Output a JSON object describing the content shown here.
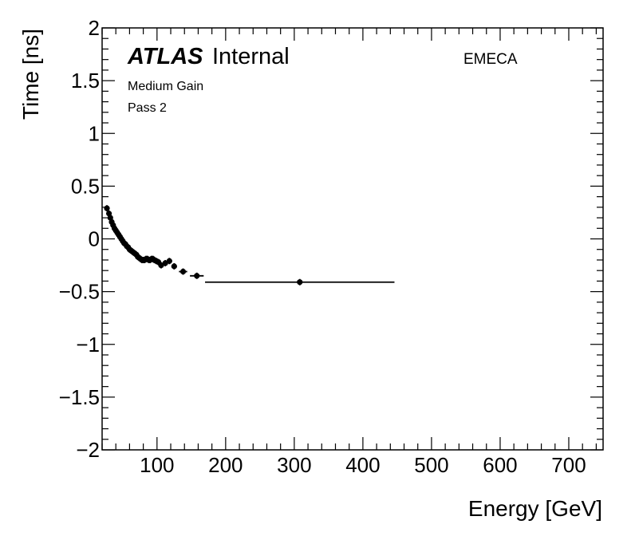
{
  "chart_data": {
    "type": "scatter",
    "title": "",
    "xlabel": "Energy [GeV]",
    "ylabel": "Time [ns]",
    "xlim": [
      20,
      750
    ],
    "ylim": [
      -2,
      2
    ],
    "x_ticks": [
      100,
      200,
      300,
      400,
      500,
      600,
      700
    ],
    "y_ticks": [
      -2,
      -1.5,
      -1,
      -0.5,
      0,
      0.5,
      1,
      1.5,
      2
    ],
    "y_tick_labels": [
      "−2",
      "−1.5",
      "−1",
      "−0.5",
      "0",
      "0.5",
      "1",
      "1.5",
      "2"
    ],
    "annotations": {
      "experiment": "ATLAS",
      "status": "Internal",
      "gain": "Medium Gain",
      "pass": "Pass 2",
      "region": "EMECA"
    },
    "series": [
      {
        "name": "EMECA",
        "points": [
          {
            "x": 27,
            "y": 0.29,
            "xerr": 2,
            "yerr": 0.03
          },
          {
            "x": 30,
            "y": 0.24,
            "xerr": 1,
            "yerr": 0.03
          },
          {
            "x": 32,
            "y": 0.2,
            "xerr": 1,
            "yerr": 0.03
          },
          {
            "x": 34,
            "y": 0.16,
            "xerr": 1,
            "yerr": 0.03
          },
          {
            "x": 36,
            "y": 0.13,
            "xerr": 1,
            "yerr": 0.03
          },
          {
            "x": 38,
            "y": 0.1,
            "xerr": 1,
            "yerr": 0.03
          },
          {
            "x": 40,
            "y": 0.08,
            "xerr": 1,
            "yerr": 0.03
          },
          {
            "x": 42,
            "y": 0.06,
            "xerr": 1,
            "yerr": 0.03
          },
          {
            "x": 44,
            "y": 0.04,
            "xerr": 1,
            "yerr": 0.03
          },
          {
            "x": 46,
            "y": 0.02,
            "xerr": 1,
            "yerr": 0.03
          },
          {
            "x": 48,
            "y": 0.0,
            "xerr": 1,
            "yerr": 0.03
          },
          {
            "x": 50,
            "y": -0.02,
            "xerr": 1,
            "yerr": 0.03
          },
          {
            "x": 52,
            "y": -0.04,
            "xerr": 1,
            "yerr": 0.03
          },
          {
            "x": 54,
            "y": -0.05,
            "xerr": 1,
            "yerr": 0.03
          },
          {
            "x": 56,
            "y": -0.07,
            "xerr": 1,
            "yerr": 0.03
          },
          {
            "x": 58,
            "y": -0.08,
            "xerr": 1,
            "yerr": 0.03
          },
          {
            "x": 60,
            "y": -0.1,
            "xerr": 1,
            "yerr": 0.03
          },
          {
            "x": 62,
            "y": -0.11,
            "xerr": 1,
            "yerr": 0.03
          },
          {
            "x": 64,
            "y": -0.12,
            "xerr": 1,
            "yerr": 0.03
          },
          {
            "x": 66,
            "y": -0.13,
            "xerr": 1,
            "yerr": 0.03
          },
          {
            "x": 68,
            "y": -0.14,
            "xerr": 1,
            "yerr": 0.03
          },
          {
            "x": 70,
            "y": -0.15,
            "xerr": 1,
            "yerr": 0.03
          },
          {
            "x": 72,
            "y": -0.17,
            "xerr": 1,
            "yerr": 0.03
          },
          {
            "x": 74,
            "y": -0.18,
            "xerr": 1,
            "yerr": 0.03
          },
          {
            "x": 76,
            "y": -0.19,
            "xerr": 1,
            "yerr": 0.03
          },
          {
            "x": 78,
            "y": -0.2,
            "xerr": 1,
            "yerr": 0.03
          },
          {
            "x": 80,
            "y": -0.2,
            "xerr": 1,
            "yerr": 0.03
          },
          {
            "x": 82,
            "y": -0.2,
            "xerr": 1,
            "yerr": 0.03
          },
          {
            "x": 84,
            "y": -0.19,
            "xerr": 1,
            "yerr": 0.03
          },
          {
            "x": 86,
            "y": -0.19,
            "xerr": 1,
            "yerr": 0.03
          },
          {
            "x": 88,
            "y": -0.2,
            "xerr": 1,
            "yerr": 0.03
          },
          {
            "x": 90,
            "y": -0.2,
            "xerr": 1,
            "yerr": 0.03
          },
          {
            "x": 92,
            "y": -0.19,
            "xerr": 1,
            "yerr": 0.03
          },
          {
            "x": 94,
            "y": -0.19,
            "xerr": 1,
            "yerr": 0.03
          },
          {
            "x": 96,
            "y": -0.2,
            "xerr": 1,
            "yerr": 0.03
          },
          {
            "x": 99,
            "y": -0.21,
            "xerr": 2,
            "yerr": 0.03
          },
          {
            "x": 102,
            "y": -0.22,
            "xerr": 2,
            "yerr": 0.03
          },
          {
            "x": 106,
            "y": -0.25,
            "xerr": 3,
            "yerr": 0.03
          },
          {
            "x": 112,
            "y": -0.23,
            "xerr": 3,
            "yerr": 0.03
          },
          {
            "x": 118,
            "y": -0.21,
            "xerr": 4,
            "yerr": 0.03
          },
          {
            "x": 125,
            "y": -0.26,
            "xerr": 4,
            "yerr": 0.03
          },
          {
            "x": 138,
            "y": -0.31,
            "xerr": 6,
            "yerr": 0.03
          },
          {
            "x": 158,
            "y": -0.35,
            "xerr": 10,
            "yerr": 0.03
          },
          {
            "x": 308,
            "y": -0.41,
            "xerr": 138,
            "yerr": 0.03
          }
        ]
      }
    ]
  }
}
